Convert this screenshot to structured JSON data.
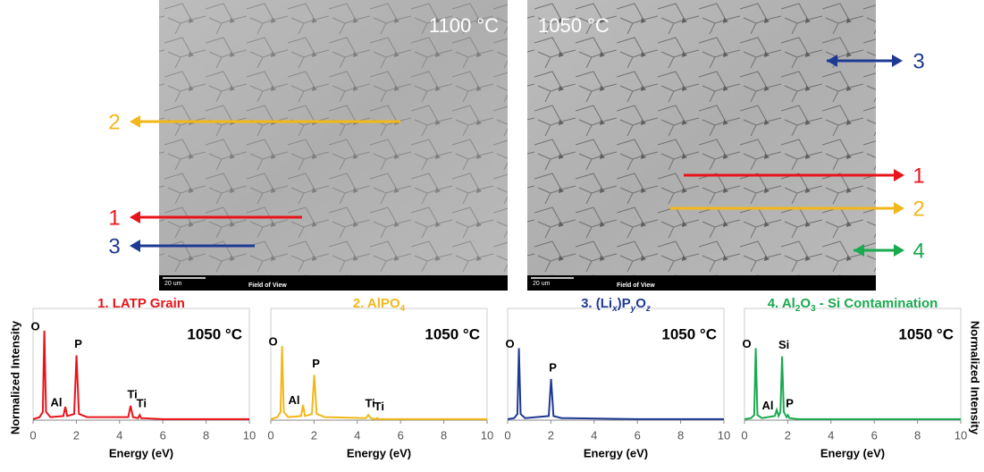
{
  "sem_images": [
    {
      "temperature": "1100 °C",
      "scale_bar": "20 um",
      "footer": "Field of View",
      "arrows": [
        "2",
        "1",
        "3"
      ]
    },
    {
      "temperature": "1050 °C",
      "scale_bar": "20 um",
      "footer": "Field of View",
      "arrows": [
        "3",
        "1",
        "2",
        "4"
      ]
    }
  ],
  "chart_data": [
    {
      "type": "line",
      "title": [
        "1. LATP Grain"
      ],
      "color": "#e8141b",
      "label": "1050 °C",
      "x_label": "Energy (eV)",
      "y_label": "Normalized Intensity",
      "x": [
        0,
        0.3,
        0.45,
        0.52,
        0.6,
        0.8,
        1.4,
        1.49,
        1.58,
        1.9,
        2.01,
        2.12,
        2.5,
        4.4,
        4.51,
        4.62,
        4.85,
        4.93,
        5.0,
        6,
        10
      ],
      "values": [
        0.01,
        0.03,
        0.08,
        0.87,
        0.08,
        0.03,
        0.04,
        0.13,
        0.04,
        0.06,
        0.63,
        0.06,
        0.03,
        0.03,
        0.14,
        0.03,
        0.02,
        0.05,
        0.02,
        0.01,
        0.01
      ],
      "annotations": [
        {
          "text": "O",
          "x": 0.52,
          "y": 0.87
        },
        {
          "text": "Al",
          "x": 1.49,
          "y": 0.13
        },
        {
          "text": "P",
          "x": 2.01,
          "y": 0.63
        },
        {
          "text": "Ti",
          "x": 4.51,
          "y": 0.14
        },
        {
          "text": "Ti",
          "x": 4.93,
          "y": 0.05
        }
      ],
      "xlim": [
        0,
        10
      ],
      "ylim": [
        0,
        1
      ],
      "xticks": [
        0,
        2,
        4,
        6,
        8,
        10
      ]
    },
    {
      "type": "line",
      "title": [
        "2. AlPO",
        "4"
      ],
      "color": "#f2b719",
      "label": "1050 °C",
      "x_label": "Energy (eV)",
      "x": [
        0,
        0.3,
        0.45,
        0.52,
        0.6,
        0.8,
        1.4,
        1.49,
        1.58,
        1.9,
        2.01,
        2.12,
        2.5,
        4.4,
        4.51,
        4.62,
        4.85,
        4.93,
        5.0,
        6,
        10
      ],
      "values": [
        0.01,
        0.03,
        0.08,
        0.72,
        0.08,
        0.03,
        0.04,
        0.15,
        0.04,
        0.06,
        0.44,
        0.06,
        0.03,
        0.02,
        0.05,
        0.02,
        0.01,
        0.02,
        0.01,
        0.01,
        0.01
      ],
      "annotations": [
        {
          "text": "O",
          "x": 0.52,
          "y": 0.72
        },
        {
          "text": "P",
          "x": 2.01,
          "y": 0.44
        },
        {
          "text": "Al",
          "x": 1.49,
          "y": 0.15
        },
        {
          "text": "Ti",
          "x": 4.51,
          "y": 0.05
        },
        {
          "text": "Ti",
          "x": 4.93,
          "y": 0.02
        }
      ],
      "xlim": [
        0,
        10
      ],
      "ylim": [
        0,
        1
      ],
      "xticks": [
        0,
        2,
        4,
        6,
        8,
        10
      ]
    },
    {
      "type": "line",
      "title": [
        "3. (Li",
        "x",
        ")P",
        "y",
        "O",
        "z"
      ],
      "color": "#1f3a93",
      "label": "1050 °C",
      "x_label": "Energy (eV)",
      "x": [
        0,
        0.3,
        0.45,
        0.52,
        0.6,
        0.8,
        1.9,
        2.01,
        2.12,
        2.5,
        6,
        10
      ],
      "values": [
        0.01,
        0.02,
        0.06,
        0.7,
        0.06,
        0.02,
        0.04,
        0.4,
        0.04,
        0.02,
        0.01,
        0.01
      ],
      "annotations": [
        {
          "text": "O",
          "x": 0.52,
          "y": 0.7
        },
        {
          "text": "P",
          "x": 2.01,
          "y": 0.4
        }
      ],
      "xlim": [
        0,
        10
      ],
      "ylim": [
        0,
        1
      ],
      "xticks": [
        0,
        2,
        4,
        6,
        8,
        10
      ]
    },
    {
      "type": "line",
      "title": [
        "4. Al",
        "2",
        "O",
        "3",
        " - Si Contamination"
      ],
      "color": "#1aaa4f",
      "label": "1050 °C",
      "x_label": "Energy (eV)",
      "y_label": "Normalized Intensity",
      "x": [
        0,
        0.3,
        0.45,
        0.52,
        0.6,
        0.8,
        1.4,
        1.49,
        1.58,
        1.66,
        1.74,
        1.82,
        1.95,
        2.01,
        2.08,
        2.5,
        6,
        10
      ],
      "values": [
        0.01,
        0.02,
        0.05,
        0.7,
        0.05,
        0.02,
        0.04,
        0.1,
        0.04,
        0.08,
        0.62,
        0.08,
        0.03,
        0.05,
        0.02,
        0.01,
        0.01,
        0.01
      ],
      "annotations": [
        {
          "text": "O",
          "x": 0.52,
          "y": 0.7
        },
        {
          "text": "Si",
          "x": 1.74,
          "y": 0.62
        },
        {
          "text": "Al",
          "x": 1.49,
          "y": 0.1
        },
        {
          "text": "P",
          "x": 2.01,
          "y": 0.05
        }
      ],
      "xlim": [
        0,
        10
      ],
      "ylim": [
        0,
        1
      ],
      "xticks": [
        0,
        2,
        4,
        6,
        8,
        10
      ]
    }
  ]
}
